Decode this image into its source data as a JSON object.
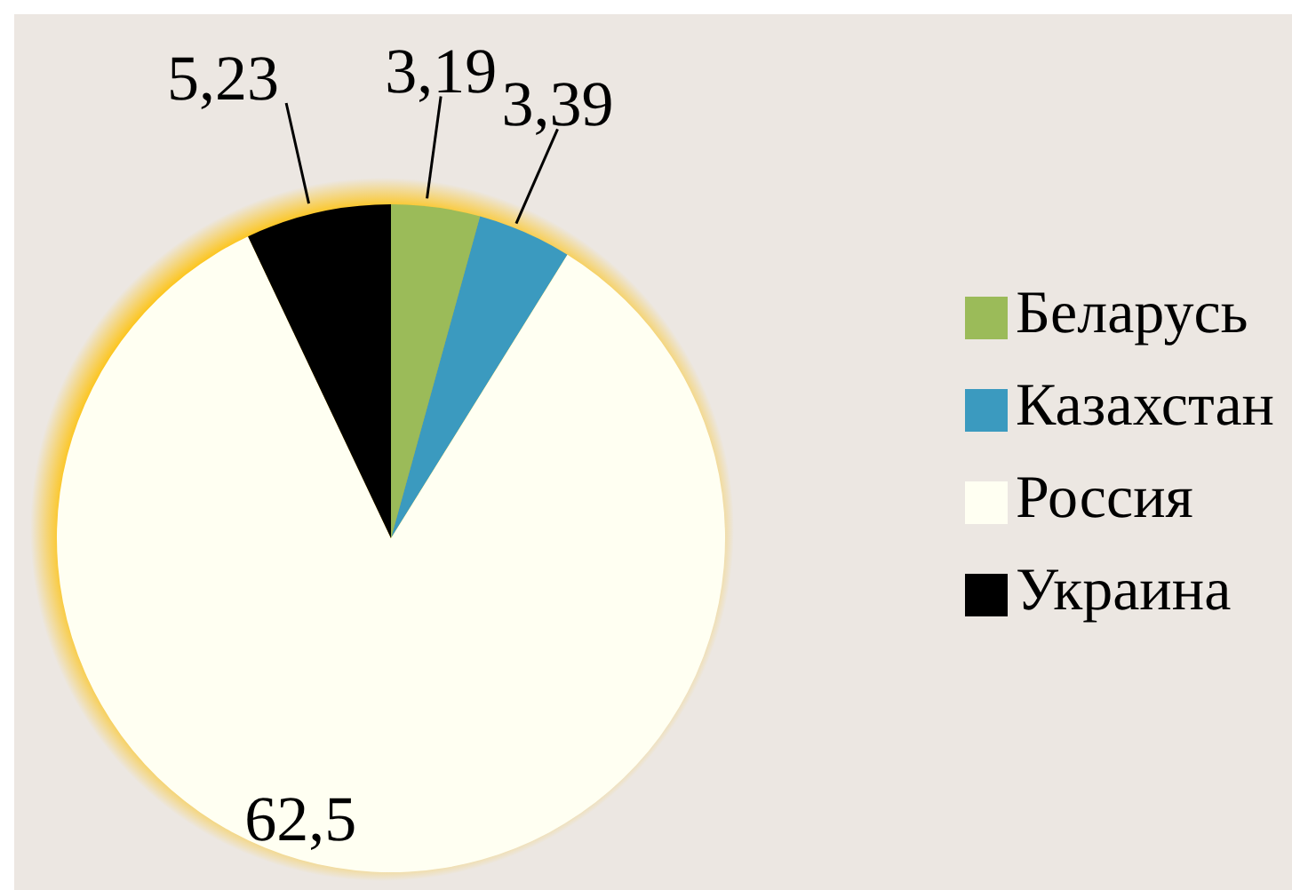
{
  "chart_data": {
    "type": "pie",
    "categories": [
      "Беларусь",
      "Казахстан",
      "Россия",
      "Украина"
    ],
    "values": [
      3.19,
      3.39,
      62.5,
      5.23
    ],
    "value_labels": [
      "3,19",
      "3,39",
      "62,5",
      "5,23"
    ],
    "colors": [
      "#9bbb59",
      "#3b9abf",
      "#fffff2",
      "#000000"
    ],
    "legend": "right"
  }
}
